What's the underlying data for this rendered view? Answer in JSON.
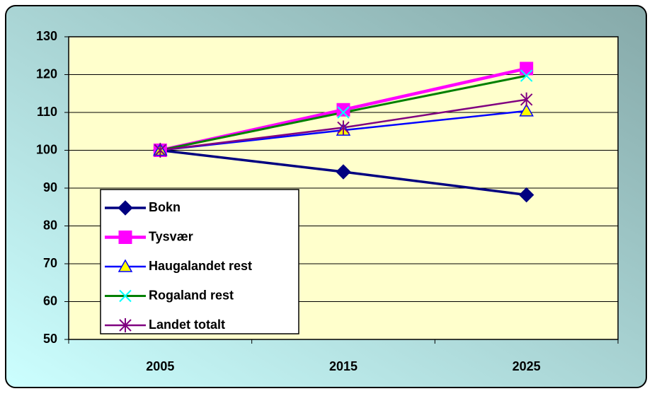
{
  "chart_data": {
    "type": "line",
    "categories": [
      "2005",
      "2015",
      "2025"
    ],
    "series": [
      {
        "name": "Bokn",
        "color": "#000080",
        "marker": "diamond",
        "marker_color": "#000080",
        "values": [
          100,
          94.3,
          88.2
        ]
      },
      {
        "name": "Tysvær",
        "color": "#FF00FF",
        "marker": "square",
        "marker_color": "#FF00FF",
        "values": [
          100,
          110.7,
          121.6
        ]
      },
      {
        "name": "Haugalandet rest",
        "color": "#0000FF",
        "marker": "triangle",
        "marker_color": "#FFFF00",
        "values": [
          100,
          105.3,
          110.4
        ]
      },
      {
        "name": "Rogaland rest",
        "color": "#008000",
        "marker": "x",
        "marker_color": "#00FFFF",
        "values": [
          100,
          110,
          119.7
        ]
      },
      {
        "name": "Landet totalt",
        "color": "#800080",
        "marker": "star",
        "marker_color": "#800080",
        "values": [
          100,
          106,
          113.4
        ]
      }
    ],
    "ylim": [
      50,
      130
    ],
    "yticks": [
      50,
      60,
      70,
      80,
      90,
      100,
      110,
      120,
      130
    ],
    "grid": true,
    "legend": "bottom-left",
    "plot_background": "#FFFFCC"
  }
}
